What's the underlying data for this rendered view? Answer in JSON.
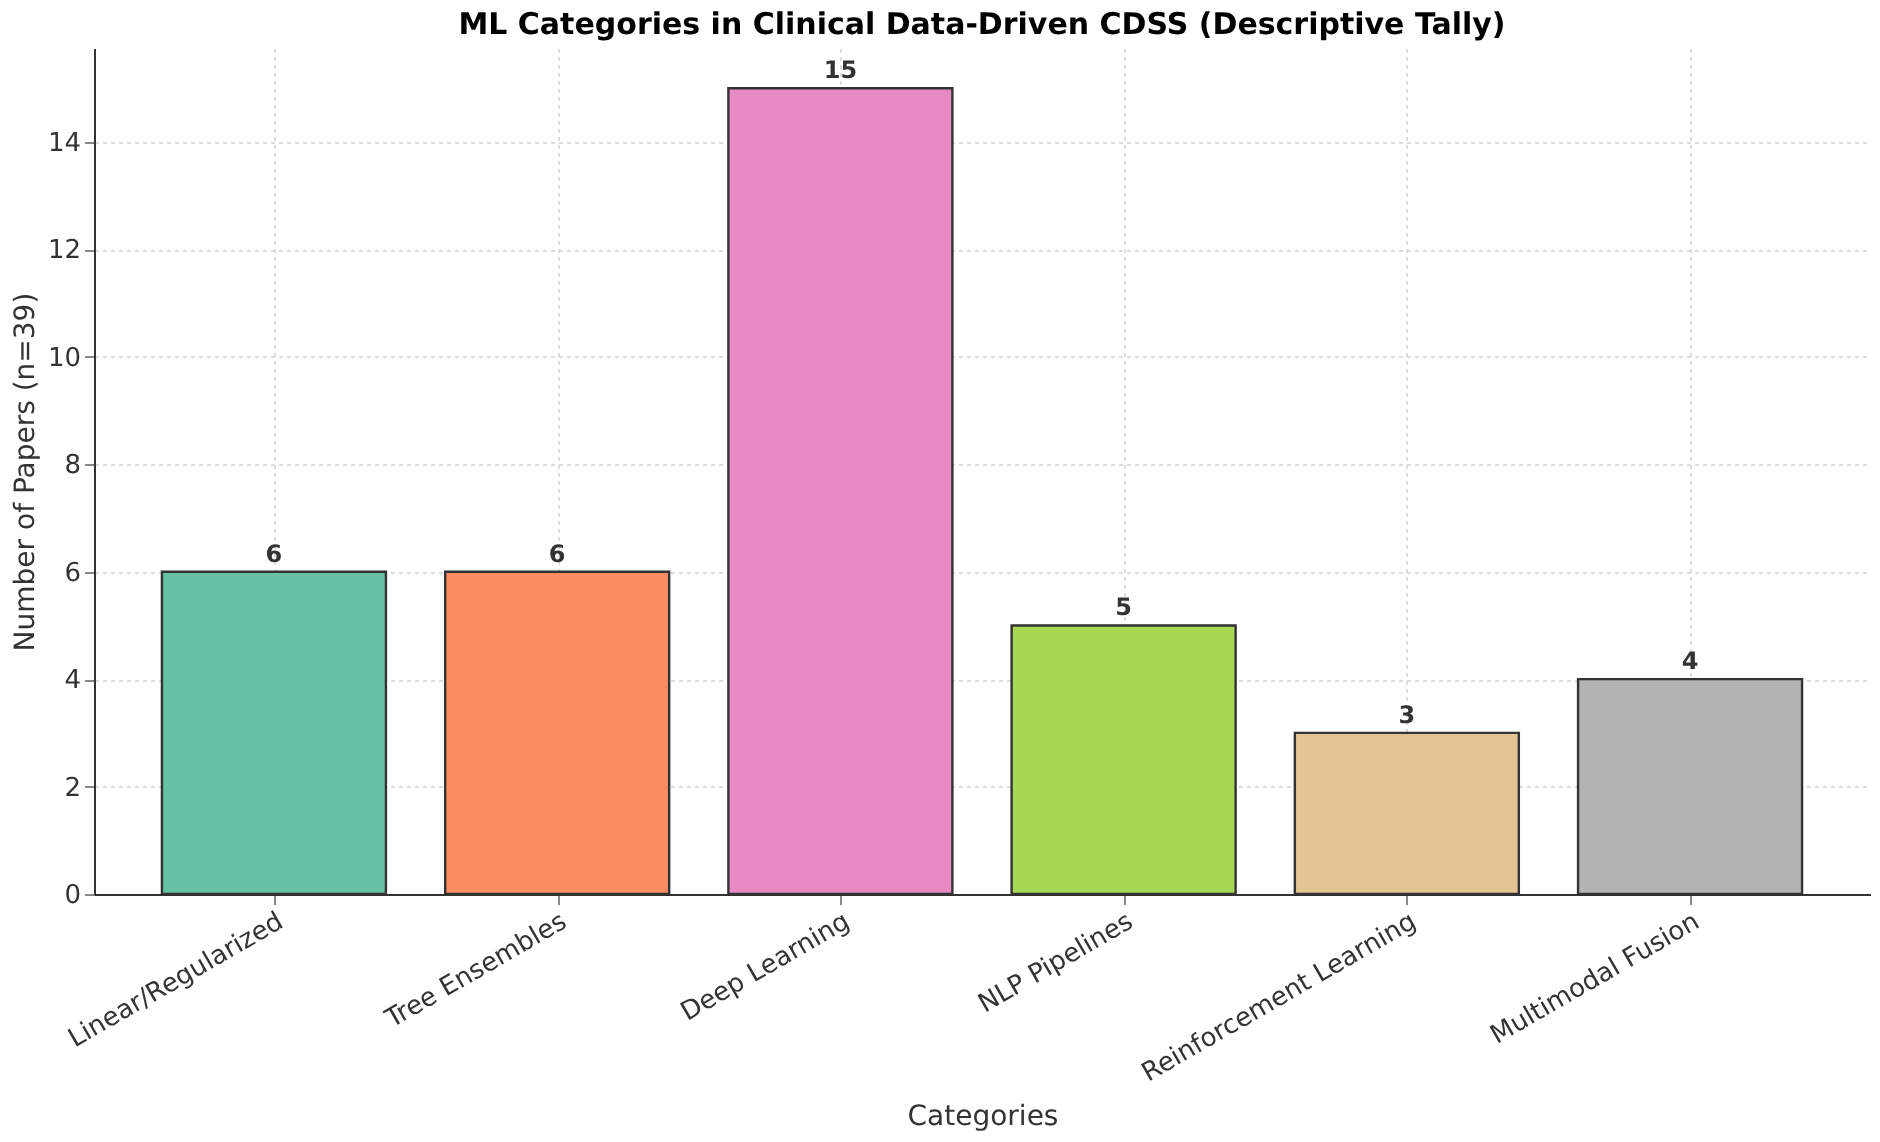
{
  "chart_data": {
    "type": "bar",
    "title": "ML Categories in Clinical Data-Driven CDSS (Descriptive Tally)",
    "xlabel": "Categories",
    "ylabel": "Number of Papers (n=39)",
    "categories": [
      "Linear/Regularized",
      "Tree Ensembles",
      "Deep Learning",
      "NLP Pipelines",
      "Reinforcement Learning",
      "Multimodal Fusion"
    ],
    "values": [
      6,
      6,
      15,
      5,
      3,
      4
    ],
    "colors": [
      "#66c2a5",
      "#fc8d62",
      "#e78ac3",
      "#a6d854",
      "#e5c494",
      "#b3b3b3"
    ],
    "ylim": [
      0,
      15.75
    ],
    "yticks": [
      0,
      2,
      4,
      6,
      8,
      10,
      12,
      14
    ],
    "grid": true,
    "data_labels": true
  }
}
